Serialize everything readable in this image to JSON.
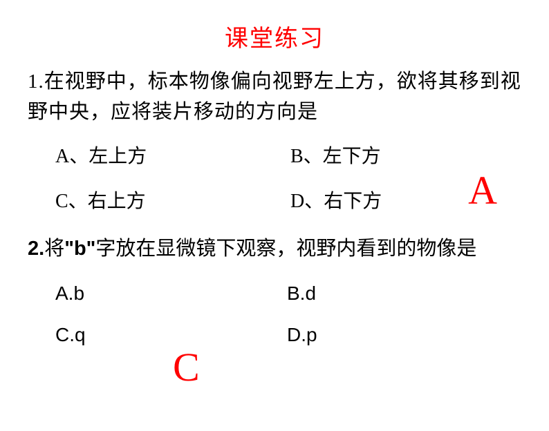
{
  "title": "课堂练习",
  "question1": {
    "text": "1.在视野中，标本物像偏向视野左上方，欲将其移到视野中央，应将装片移动的方向是",
    "optionA": "A、左上方",
    "optionB": "B、左下方",
    "optionC": "C、右上方",
    "optionD": "D、右下方",
    "answer": "A"
  },
  "question2": {
    "prefix": "2.",
    "part1": "将",
    "quote": "\"b\"",
    "part2": "字放在显微镜下观察，视野内看到的物像是",
    "optionA": "A.b",
    "optionB": "B.d",
    "optionC": "C.q",
    "optionD": "D.p",
    "answer": "C"
  },
  "colors": {
    "title_color": "#ff0000",
    "answer_color": "#ff0000",
    "text_color": "#000000",
    "background": "#ffffff"
  }
}
